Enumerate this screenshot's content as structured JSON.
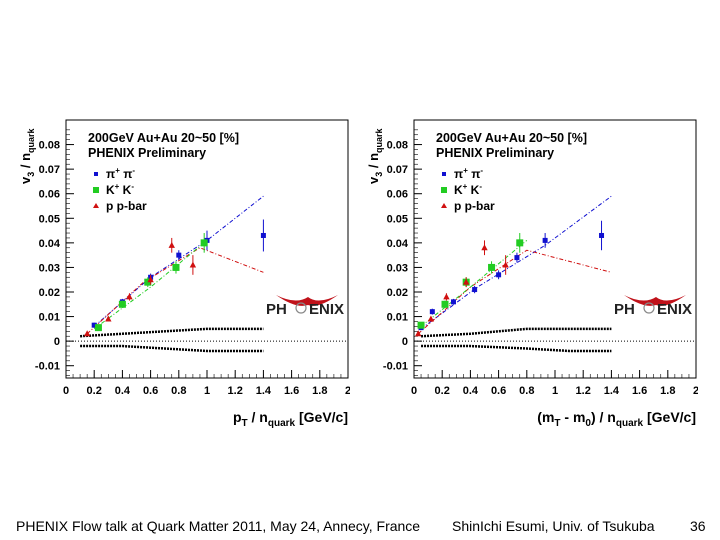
{
  "footer": {
    "left_text": "PHENIX Flow talk at Quark Matter 2011, May 24, Annecy, France",
    "author_text": "ShinIchi Esumi, Univ. of Tsukuba",
    "page_number": "36"
  },
  "colors": {
    "pi": "#1010d0",
    "k": "#22cc22",
    "p": "#d01010",
    "logo_red": "#c0121a"
  },
  "chart_data": [
    {
      "type": "scatter",
      "title": "200GeV Au+Au 20~50 [%]",
      "subtitle": "PHENIX Preliminary",
      "logo_left": "PH",
      "logo_right": "ENIX",
      "ylabel_main": "v",
      "ylabel_sub1": "3",
      "ylabel_mid": " / n",
      "ylabel_sub2": "quark",
      "xlabel_main": "p",
      "xlabel_sub1": "T",
      "xlabel_mid": " / n",
      "xlabel_sub2": "quark",
      "xlabel_unit": " [GeV/c]",
      "xlim": [
        0,
        2
      ],
      "ylim": [
        -0.015,
        0.09
      ],
      "grid": false,
      "legend_position": "top-left",
      "xticks": [
        "0",
        "0.2",
        "0.4",
        "0.6",
        "0.8",
        "1",
        "1.2",
        "1.4",
        "1.6",
        "1.8",
        "2"
      ],
      "yticks": [
        "-0.01",
        "0",
        "0.01",
        "0.02",
        "0.03",
        "0.04",
        "0.05",
        "0.06",
        "0.07",
        "0.08"
      ],
      "legend": [
        {
          "label": "π",
          "sup1": "+",
          "mid": " π",
          "sup2": "-",
          "marker": "square",
          "color": "#1010d0"
        },
        {
          "label": "K",
          "sup1": "+",
          "mid": " K",
          "sup2": "-",
          "marker": "square",
          "color": "#22cc22"
        },
        {
          "label": "p p-bar",
          "sup1": "",
          "mid": "",
          "sup2": "",
          "marker": "triangle",
          "color": "#d01010"
        }
      ],
      "series": [
        {
          "name": "pi+ pi-",
          "color": "#1010d0",
          "marker": "square",
          "x": [
            0.2,
            0.4,
            0.6,
            0.8,
            1.0,
            1.4
          ],
          "y": [
            0.0065,
            0.016,
            0.026,
            0.035,
            0.041,
            0.043
          ],
          "err": [
            0.001,
            0.0012,
            0.0015,
            0.002,
            0.004,
            0.0065
          ]
        },
        {
          "name": "K+ K-",
          "color": "#22cc22",
          "marker": "square",
          "x": [
            0.23,
            0.4,
            0.58,
            0.78,
            0.98
          ],
          "y": [
            0.0055,
            0.015,
            0.024,
            0.03,
            0.04
          ],
          "err": [
            0.001,
            0.0015,
            0.002,
            0.0025,
            0.004
          ]
        },
        {
          "name": "p p-bar",
          "color": "#d01010",
          "marker": "triangle",
          "x": [
            0.15,
            0.3,
            0.45,
            0.6,
            0.75,
            0.9
          ],
          "y": [
            0.003,
            0.009,
            0.018,
            0.025,
            0.039,
            0.031
          ],
          "err": [
            0.0008,
            0.001,
            0.0015,
            0.002,
            0.003,
            0.004
          ]
        }
      ],
      "bands": [
        {
          "name": "fit-pi",
          "color": "#1010d0",
          "x": [
            0.2,
            0.6,
            1.0,
            1.4
          ],
          "y": [
            0.006,
            0.026,
            0.041,
            0.059
          ]
        },
        {
          "name": "fit-p",
          "color": "#d01010",
          "x": [
            0.15,
            0.55,
            0.95,
            1.4
          ],
          "y": [
            0.003,
            0.024,
            0.038,
            0.028
          ]
        },
        {
          "name": "fit-k",
          "color": "#22cc22",
          "x": [
            0.2,
            0.6,
            1.0
          ],
          "y": [
            0.005,
            0.022,
            0.041
          ]
        }
      ],
      "systematics": {
        "x": [
          0.1,
          0.4,
          0.7,
          1.0,
          1.4
        ],
        "upper": [
          0.002,
          0.003,
          0.004,
          0.005,
          0.005
        ],
        "lower": [
          -0.002,
          -0.002,
          -0.003,
          -0.004,
          -0.004
        ]
      }
    },
    {
      "type": "scatter",
      "title": "200GeV Au+Au 20~50 [%]",
      "subtitle": "PHENIX Preliminary",
      "logo_left": "PH",
      "logo_right": "ENIX",
      "ylabel_main": "v",
      "ylabel_sub1": "3",
      "ylabel_mid": " / n",
      "ylabel_sub2": "quark",
      "xlabel_main": "(m",
      "xlabel_sub1": "T",
      "xlabel_mid": " - m",
      "xlabel_sub2": "0",
      "xlabel_tail": ") / n",
      "xlabel_sub3": "quark",
      "xlabel_unit": " [GeV/c]",
      "xlim": [
        0,
        2
      ],
      "ylim": [
        -0.015,
        0.09
      ],
      "grid": false,
      "legend_position": "top-left",
      "xticks": [
        "0",
        "0.2",
        "0.4",
        "0.6",
        "0.8",
        "1",
        "1.2",
        "1.4",
        "1.6",
        "1.8",
        "2"
      ],
      "yticks": [
        "-0.01",
        "0",
        "0.01",
        "0.02",
        "0.03",
        "0.04",
        "0.05",
        "0.06",
        "0.07",
        "0.08"
      ],
      "legend": [
        {
          "label": "π",
          "sup1": "+",
          "mid": " π",
          "sup2": "-",
          "marker": "square",
          "color": "#1010d0"
        },
        {
          "label": "K",
          "sup1": "+",
          "mid": " K",
          "sup2": "-",
          "marker": "square",
          "color": "#22cc22"
        },
        {
          "label": "p p-bar",
          "sup1": "",
          "mid": "",
          "sup2": "",
          "marker": "triangle",
          "color": "#d01010"
        }
      ],
      "series": [
        {
          "name": "pi+ pi-",
          "color": "#1010d0",
          "marker": "square",
          "x": [
            0.05,
            0.13,
            0.28,
            0.43,
            0.6,
            0.73,
            0.93,
            1.33
          ],
          "y": [
            0.0055,
            0.012,
            0.016,
            0.021,
            0.027,
            0.034,
            0.041,
            0.043
          ],
          "err": [
            0.001,
            0.0012,
            0.0012,
            0.0015,
            0.0018,
            0.002,
            0.003,
            0.006
          ]
        },
        {
          "name": "K+ K-",
          "color": "#22cc22",
          "marker": "square",
          "x": [
            0.05,
            0.22,
            0.37,
            0.55,
            0.75
          ],
          "y": [
            0.0065,
            0.015,
            0.024,
            0.03,
            0.04
          ],
          "err": [
            0.001,
            0.0015,
            0.002,
            0.0025,
            0.004
          ]
        },
        {
          "name": "p p-bar",
          "color": "#d01010",
          "marker": "triangle",
          "x": [
            0.03,
            0.12,
            0.23,
            0.37,
            0.5,
            0.65
          ],
          "y": [
            0.003,
            0.009,
            0.018,
            0.024,
            0.038,
            0.031
          ],
          "err": [
            0.0008,
            0.001,
            0.0015,
            0.002,
            0.003,
            0.004
          ]
        }
      ],
      "bands": [
        {
          "name": "fit-pi",
          "color": "#1010d0",
          "x": [
            0.05,
            0.45,
            0.93,
            1.4
          ],
          "y": [
            0.005,
            0.022,
            0.039,
            0.059
          ]
        },
        {
          "name": "fit-p",
          "color": "#d01010",
          "x": [
            0.03,
            0.4,
            0.8,
            1.4
          ],
          "y": [
            0.003,
            0.022,
            0.037,
            0.028
          ]
        },
        {
          "name": "fit-k",
          "color": "#22cc22",
          "x": [
            0.05,
            0.4,
            0.8
          ],
          "y": [
            0.006,
            0.022,
            0.041
          ]
        }
      ],
      "systematics": {
        "x": [
          0.05,
          0.4,
          0.8,
          1.1,
          1.4
        ],
        "upper": [
          0.002,
          0.003,
          0.005,
          0.005,
          0.005
        ],
        "lower": [
          -0.002,
          -0.002,
          -0.003,
          -0.004,
          -0.004
        ]
      }
    }
  ]
}
